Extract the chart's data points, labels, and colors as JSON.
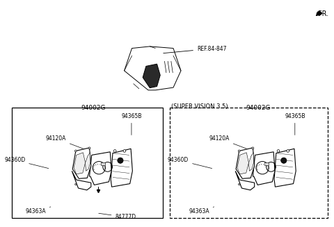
{
  "bg_color": "#ffffff",
  "fr_label": "FR.",
  "ref_label": "REF.84-847",
  "super_vision_label": "(SUPER VISION 3.5)",
  "left_label": "94002G",
  "right_label": "94002G",
  "left_parts": [
    "94365B",
    "94120A",
    "94360D",
    "94363A",
    "84777D"
  ],
  "right_parts": [
    "94365B",
    "94120A",
    "94360D",
    "94363A"
  ]
}
